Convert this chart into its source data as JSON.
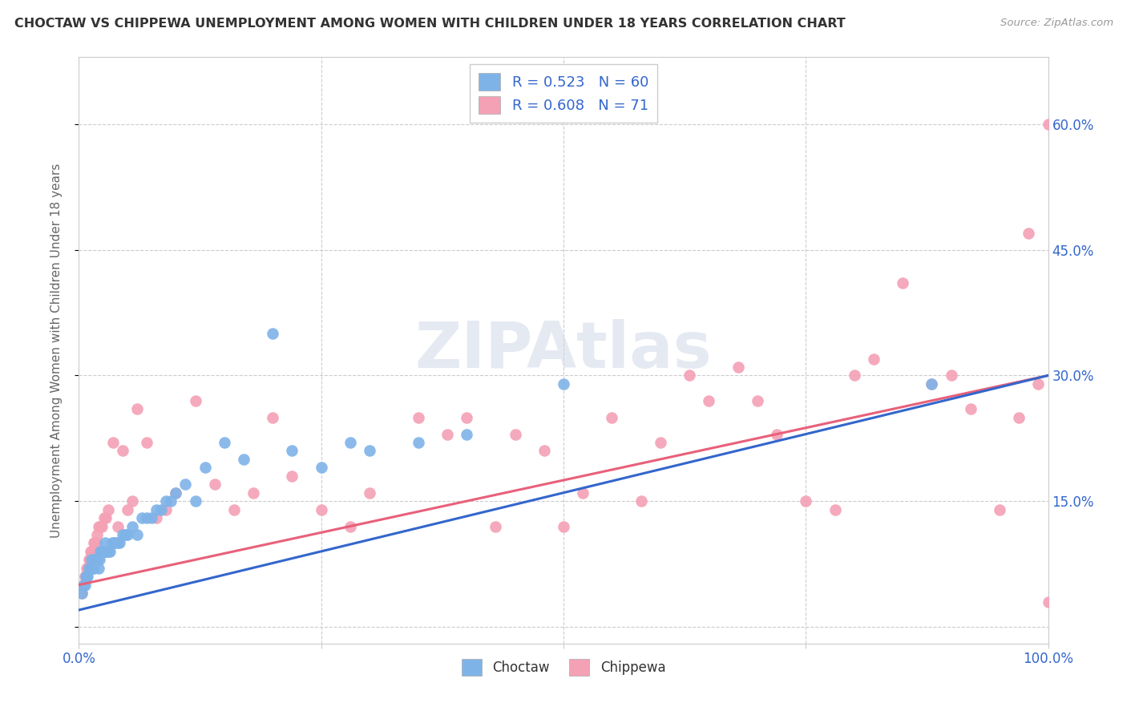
{
  "title": "CHOCTAW VS CHIPPEWA UNEMPLOYMENT AMONG WOMEN WITH CHILDREN UNDER 18 YEARS CORRELATION CHART",
  "source": "Source: ZipAtlas.com",
  "ylabel": "Unemployment Among Women with Children Under 18 years",
  "xlim": [
    0,
    1.0
  ],
  "ylim": [
    -0.02,
    0.68
  ],
  "xtick_labels": [
    "0.0%",
    "",
    "",
    "",
    "100.0%"
  ],
  "ytick_vals": [
    0.0,
    0.15,
    0.3,
    0.45,
    0.6
  ],
  "ytick_labels": [
    "",
    "15.0%",
    "30.0%",
    "45.0%",
    "60.0%"
  ],
  "choctaw_color": "#7EB3E8",
  "chippewa_color": "#F4A0B5",
  "choctaw_line_color": "#3366CC",
  "chippewa_line_color": "#E8607A",
  "background_color": "#ffffff",
  "grid_color": "#cccccc",
  "axis_label_color": "#3366CC",
  "choctaw_R": 0.523,
  "choctaw_N": 60,
  "chippewa_R": 0.608,
  "chippewa_N": 71,
  "choctaw_line_x0": 0.0,
  "choctaw_line_y0": 0.02,
  "choctaw_line_x1": 1.0,
  "choctaw_line_y1": 0.3,
  "chippewa_line_x0": 0.0,
  "chippewa_line_y0": 0.05,
  "chippewa_line_x1": 1.0,
  "chippewa_line_y1": 0.3,
  "choctaw_x": [
    0.003,
    0.005,
    0.006,
    0.007,
    0.008,
    0.009,
    0.01,
    0.011,
    0.012,
    0.013,
    0.014,
    0.015,
    0.016,
    0.017,
    0.018,
    0.019,
    0.02,
    0.021,
    0.022,
    0.023,
    0.024,
    0.025,
    0.026,
    0.027,
    0.028,
    0.029,
    0.03,
    0.032,
    0.034,
    0.036,
    0.038,
    0.04,
    0.042,
    0.045,
    0.048,
    0.05,
    0.055,
    0.06,
    0.065,
    0.07,
    0.075,
    0.08,
    0.085,
    0.09,
    0.095,
    0.1,
    0.11,
    0.12,
    0.13,
    0.15,
    0.17,
    0.2,
    0.22,
    0.25,
    0.28,
    0.3,
    0.35,
    0.4,
    0.5,
    0.88
  ],
  "choctaw_y": [
    0.04,
    0.05,
    0.05,
    0.06,
    0.06,
    0.06,
    0.07,
    0.07,
    0.07,
    0.08,
    0.07,
    0.07,
    0.08,
    0.08,
    0.08,
    0.08,
    0.07,
    0.08,
    0.09,
    0.09,
    0.09,
    0.09,
    0.09,
    0.1,
    0.09,
    0.09,
    0.09,
    0.09,
    0.1,
    0.1,
    0.1,
    0.1,
    0.1,
    0.11,
    0.11,
    0.11,
    0.12,
    0.11,
    0.13,
    0.13,
    0.13,
    0.14,
    0.14,
    0.15,
    0.15,
    0.16,
    0.17,
    0.15,
    0.19,
    0.22,
    0.2,
    0.35,
    0.21,
    0.19,
    0.22,
    0.21,
    0.22,
    0.23,
    0.29,
    0.29
  ],
  "chippewa_x": [
    0.003,
    0.005,
    0.006,
    0.007,
    0.008,
    0.009,
    0.01,
    0.011,
    0.012,
    0.013,
    0.014,
    0.015,
    0.016,
    0.017,
    0.018,
    0.019,
    0.02,
    0.022,
    0.024,
    0.026,
    0.028,
    0.03,
    0.035,
    0.04,
    0.045,
    0.05,
    0.055,
    0.06,
    0.07,
    0.08,
    0.09,
    0.1,
    0.12,
    0.14,
    0.16,
    0.18,
    0.2,
    0.22,
    0.25,
    0.28,
    0.3,
    0.35,
    0.38,
    0.4,
    0.43,
    0.45,
    0.48,
    0.5,
    0.52,
    0.55,
    0.58,
    0.6,
    0.63,
    0.65,
    0.68,
    0.7,
    0.72,
    0.75,
    0.78,
    0.8,
    0.82,
    0.85,
    0.88,
    0.9,
    0.92,
    0.95,
    0.97,
    0.98,
    0.99,
    1.0,
    1.0
  ],
  "chippewa_y": [
    0.04,
    0.05,
    0.06,
    0.06,
    0.07,
    0.07,
    0.08,
    0.08,
    0.09,
    0.09,
    0.09,
    0.1,
    0.1,
    0.09,
    0.1,
    0.11,
    0.12,
    0.12,
    0.12,
    0.13,
    0.13,
    0.14,
    0.22,
    0.12,
    0.21,
    0.14,
    0.15,
    0.26,
    0.22,
    0.13,
    0.14,
    0.16,
    0.27,
    0.17,
    0.14,
    0.16,
    0.25,
    0.18,
    0.14,
    0.12,
    0.16,
    0.25,
    0.23,
    0.25,
    0.12,
    0.23,
    0.21,
    0.12,
    0.16,
    0.25,
    0.15,
    0.22,
    0.3,
    0.27,
    0.31,
    0.27,
    0.23,
    0.15,
    0.14,
    0.3,
    0.32,
    0.41,
    0.29,
    0.3,
    0.26,
    0.14,
    0.25,
    0.47,
    0.29,
    0.6,
    0.03
  ]
}
